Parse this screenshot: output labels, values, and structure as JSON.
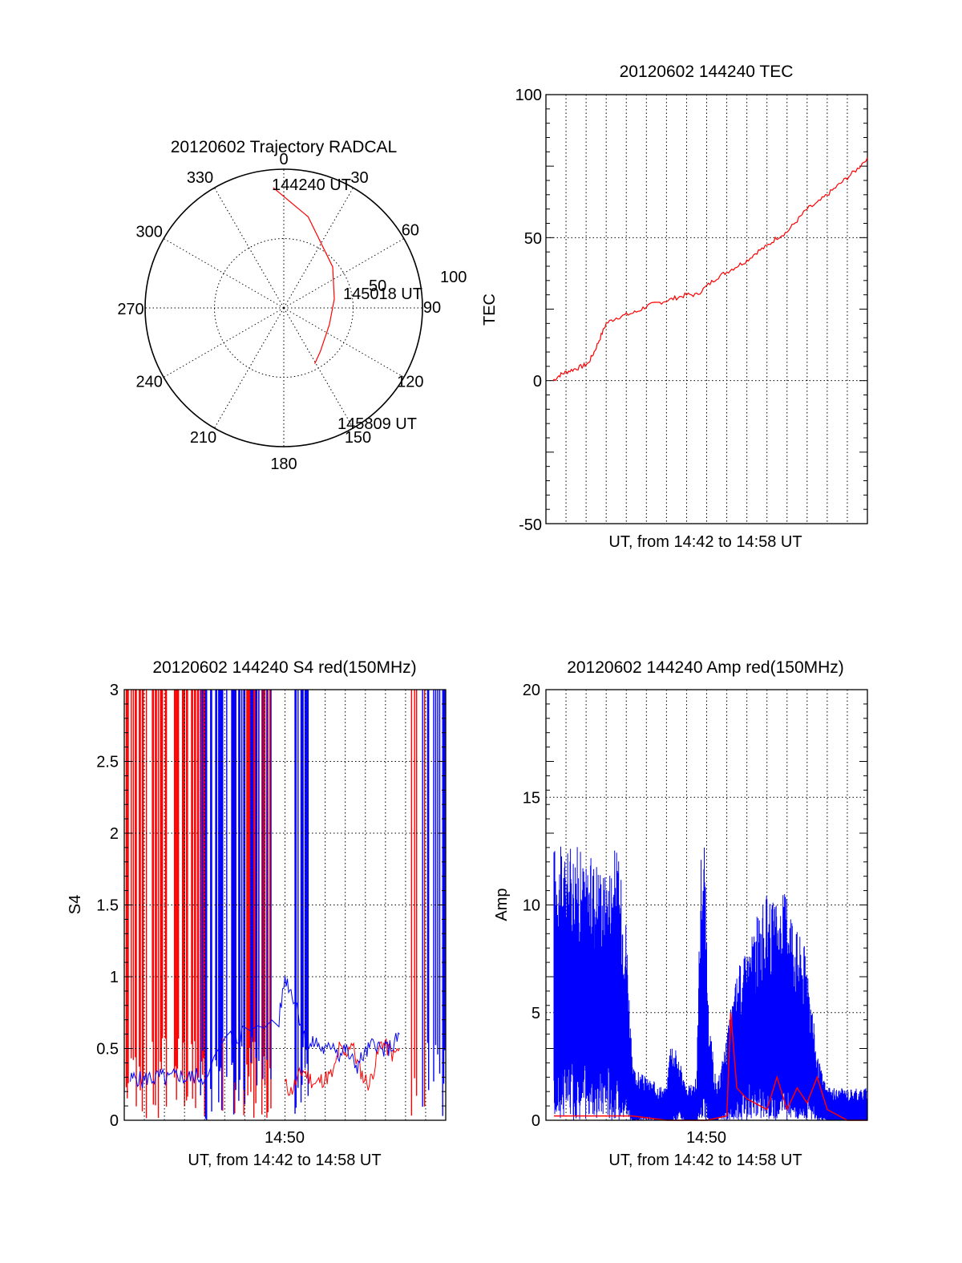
{
  "colors": {
    "red": "#ff0000",
    "blue": "#0000ff",
    "axes": "#000000",
    "background": "#ffffff"
  },
  "chart_data": [
    {
      "type": "polar",
      "title": "20120602 Trajectory RADCAL",
      "azimuth_labels": [
        "0",
        "30",
        "60",
        "90",
        "120",
        "150",
        "180",
        "210",
        "240",
        "270",
        "300",
        "330"
      ],
      "elevation_ring_labels": [
        "50",
        "100"
      ],
      "series": [
        {
          "color": "red",
          "points": [
            [
              -5,
              87
            ],
            [
              15,
              68
            ],
            [
              50,
              46
            ],
            [
              80,
              37
            ],
            [
              110,
              35
            ],
            [
              140,
              41
            ],
            [
              151,
              46
            ]
          ]
        }
      ],
      "annotations": [
        "144240 UT",
        "145018 UT",
        "145809 UT"
      ],
      "grid": true
    },
    {
      "type": "line",
      "title": "20120602 144240 TEC",
      "xlabel": "UT, from 14:42 to 14:58 UT",
      "ylabel": "TEC",
      "ylim": [
        -50,
        100
      ],
      "xlim_minutes": [
        0,
        16
      ],
      "yticks": [
        "100",
        "50",
        "0",
        "-50"
      ],
      "grid": true,
      "series": [
        {
          "color": "red",
          "x_minutes": [
            0.35,
            0.7,
            1.0,
            1.4,
            1.8,
            2.1,
            2.4,
            2.7,
            3.0,
            3.5,
            4.0,
            4.5,
            5.0,
            5.5,
            6.0,
            6.5,
            7.0,
            7.5,
            8.0,
            8.5,
            9.0,
            9.5,
            10.0,
            10.5,
            11.0,
            11.5,
            12.0,
            12.5,
            13.0,
            13.5,
            14.0,
            14.5,
            15.0,
            15.5,
            16.0
          ],
          "y": [
            0,
            2,
            3,
            4,
            5,
            6,
            10,
            15,
            20,
            22,
            23,
            24,
            26,
            27,
            28,
            29,
            30,
            30,
            33,
            36,
            38,
            40,
            42,
            45,
            47,
            50,
            52,
            56,
            60,
            62,
            65,
            68,
            71,
            74,
            78
          ]
        }
      ]
    },
    {
      "type": "line",
      "title": "20120602 144240 S4 red(150MHz)",
      "xlabel": "UT, from 14:42 to 14:58 UT",
      "ylabel": "S4",
      "ylim": [
        0,
        3
      ],
      "xlim_minutes": [
        0,
        16
      ],
      "xticks": [
        "14:50"
      ],
      "yticks": [
        "3",
        "2.5",
        "2",
        "1.5",
        "1",
        "0.5",
        "0"
      ],
      "grid": true,
      "series": [
        {
          "color": "red",
          "x_minutes": [
            8.0,
            8.3,
            8.6,
            8.9,
            9.2,
            9.5,
            9.8,
            10.1,
            10.4,
            10.7,
            11.0,
            11.3,
            11.6,
            11.9,
            12.2,
            12.5,
            12.8,
            13.1,
            13.4,
            13.7
          ],
          "y": [
            0.25,
            0.2,
            0.28,
            0.35,
            0.3,
            0.25,
            0.28,
            0.3,
            0.32,
            0.5,
            0.45,
            0.55,
            0.4,
            0.3,
            0.25,
            0.4,
            0.55,
            0.5,
            0.45,
            0.5
          ]
        },
        {
          "color": "blue",
          "x_minutes": [
            0.3,
            0.6,
            0.9,
            1.2,
            1.5,
            1.8,
            2.1,
            2.4,
            2.7,
            3.0,
            3.3,
            3.6,
            3.9,
            5.3,
            5.6,
            5.9,
            7.7,
            8.0,
            8.3,
            8.6,
            8.9,
            9.2,
            9.5,
            9.8,
            10.1,
            10.4,
            10.7,
            11.0,
            11.3,
            11.6,
            11.9,
            12.2,
            12.5,
            12.8,
            13.1,
            13.4,
            13.7
          ],
          "y": [
            0.28,
            0.3,
            0.27,
            0.3,
            0.29,
            0.31,
            0.28,
            0.3,
            0.32,
            0.29,
            0.3,
            0.31,
            0.3,
            0.6,
            0.55,
            0.62,
            0.7,
            1.0,
            0.9,
            0.8,
            0.6,
            0.5,
            0.55,
            0.5,
            0.48,
            0.55,
            0.45,
            0.5,
            0.42,
            0.38,
            0.45,
            0.5,
            0.55,
            0.48,
            0.5,
            0.52,
            0.6
          ]
        }
      ],
      "saturated_bands_minutes": {
        "red": [
          [
            0.0,
            4.6
          ],
          [
            4.8,
            5.6
          ],
          [
            5.9,
            7.3
          ],
          [
            14.3,
            15.0
          ]
        ],
        "blue": [
          [
            3.8,
            6.9
          ],
          [
            7.0,
            7.4
          ],
          [
            8.4,
            9.3
          ],
          [
            14.8,
            16.0
          ]
        ]
      }
    },
    {
      "type": "line",
      "title": "20120602 144240 Amp red(150MHz)",
      "xlabel": "UT, from 14:42 to 14:58 UT",
      "ylabel": "Amp",
      "ylim": [
        0,
        20
      ],
      "xlim_minutes": [
        0,
        16
      ],
      "xticks": [
        "14:50"
      ],
      "yticks": [
        "20",
        "15",
        "10",
        "5",
        "0"
      ],
      "grid": true,
      "series": [
        {
          "color": "red",
          "x_minutes": [
            0.4,
            1.0,
            2.0,
            3.0,
            4.0,
            4.3,
            6.0,
            8.0,
            9.0,
            9.2,
            9.5,
            10.0,
            11.0,
            11.5,
            12.0,
            12.5,
            13.0,
            13.5,
            14.0,
            15.0,
            16.0
          ],
          "y": [
            0.2,
            0.2,
            0.2,
            0.2,
            0.2,
            0.2,
            0.0,
            0.0,
            0.2,
            5.0,
            1.5,
            1.0,
            0.5,
            2.0,
            0.5,
            1.5,
            0.8,
            2.0,
            0.5,
            0.0,
            0.0
          ]
        },
        {
          "color": "blue",
          "envelope_minutes": [
            [
              0.4,
              2.0,
              13.0
            ],
            [
              1.0,
              3.0,
              12.5
            ],
            [
              1.5,
              2.5,
              13.0
            ],
            [
              2.0,
              3.0,
              12.0
            ],
            [
              2.5,
              2.0,
              12.5
            ],
            [
              3.0,
              3.0,
              11.5
            ],
            [
              3.5,
              2.0,
              13.0
            ],
            [
              4.0,
              1.5,
              9.5
            ],
            [
              4.3,
              0.0,
              2.5
            ],
            [
              5.0,
              0.2,
              2.0
            ],
            [
              6.0,
              0.0,
              1.5
            ],
            [
              6.2,
              0.0,
              4.0
            ],
            [
              6.6,
              0.5,
              3.0
            ],
            [
              7.0,
              0.0,
              1.5
            ],
            [
              7.5,
              0.0,
              2.0
            ],
            [
              7.7,
              1.0,
              12.5
            ],
            [
              7.9,
              2.0,
              12.8
            ],
            [
              8.1,
              0.0,
              5.0
            ],
            [
              8.5,
              0.0,
              1.5
            ],
            [
              9.0,
              0.5,
              4.0
            ],
            [
              9.5,
              1.0,
              7.0
            ],
            [
              10.0,
              2.0,
              8.0
            ],
            [
              10.5,
              1.5,
              9.5
            ],
            [
              11.0,
              2.0,
              10.5
            ],
            [
              11.5,
              1.0,
              10.0
            ],
            [
              12.0,
              2.0,
              11.0
            ],
            [
              12.5,
              1.0,
              9.0
            ],
            [
              13.0,
              1.0,
              8.0
            ],
            [
              13.5,
              0.5,
              3.0
            ],
            [
              14.0,
              0.0,
              1.5
            ],
            [
              15.0,
              0.0,
              1.5
            ],
            [
              16.0,
              0.0,
              1.5
            ]
          ]
        }
      ]
    }
  ]
}
